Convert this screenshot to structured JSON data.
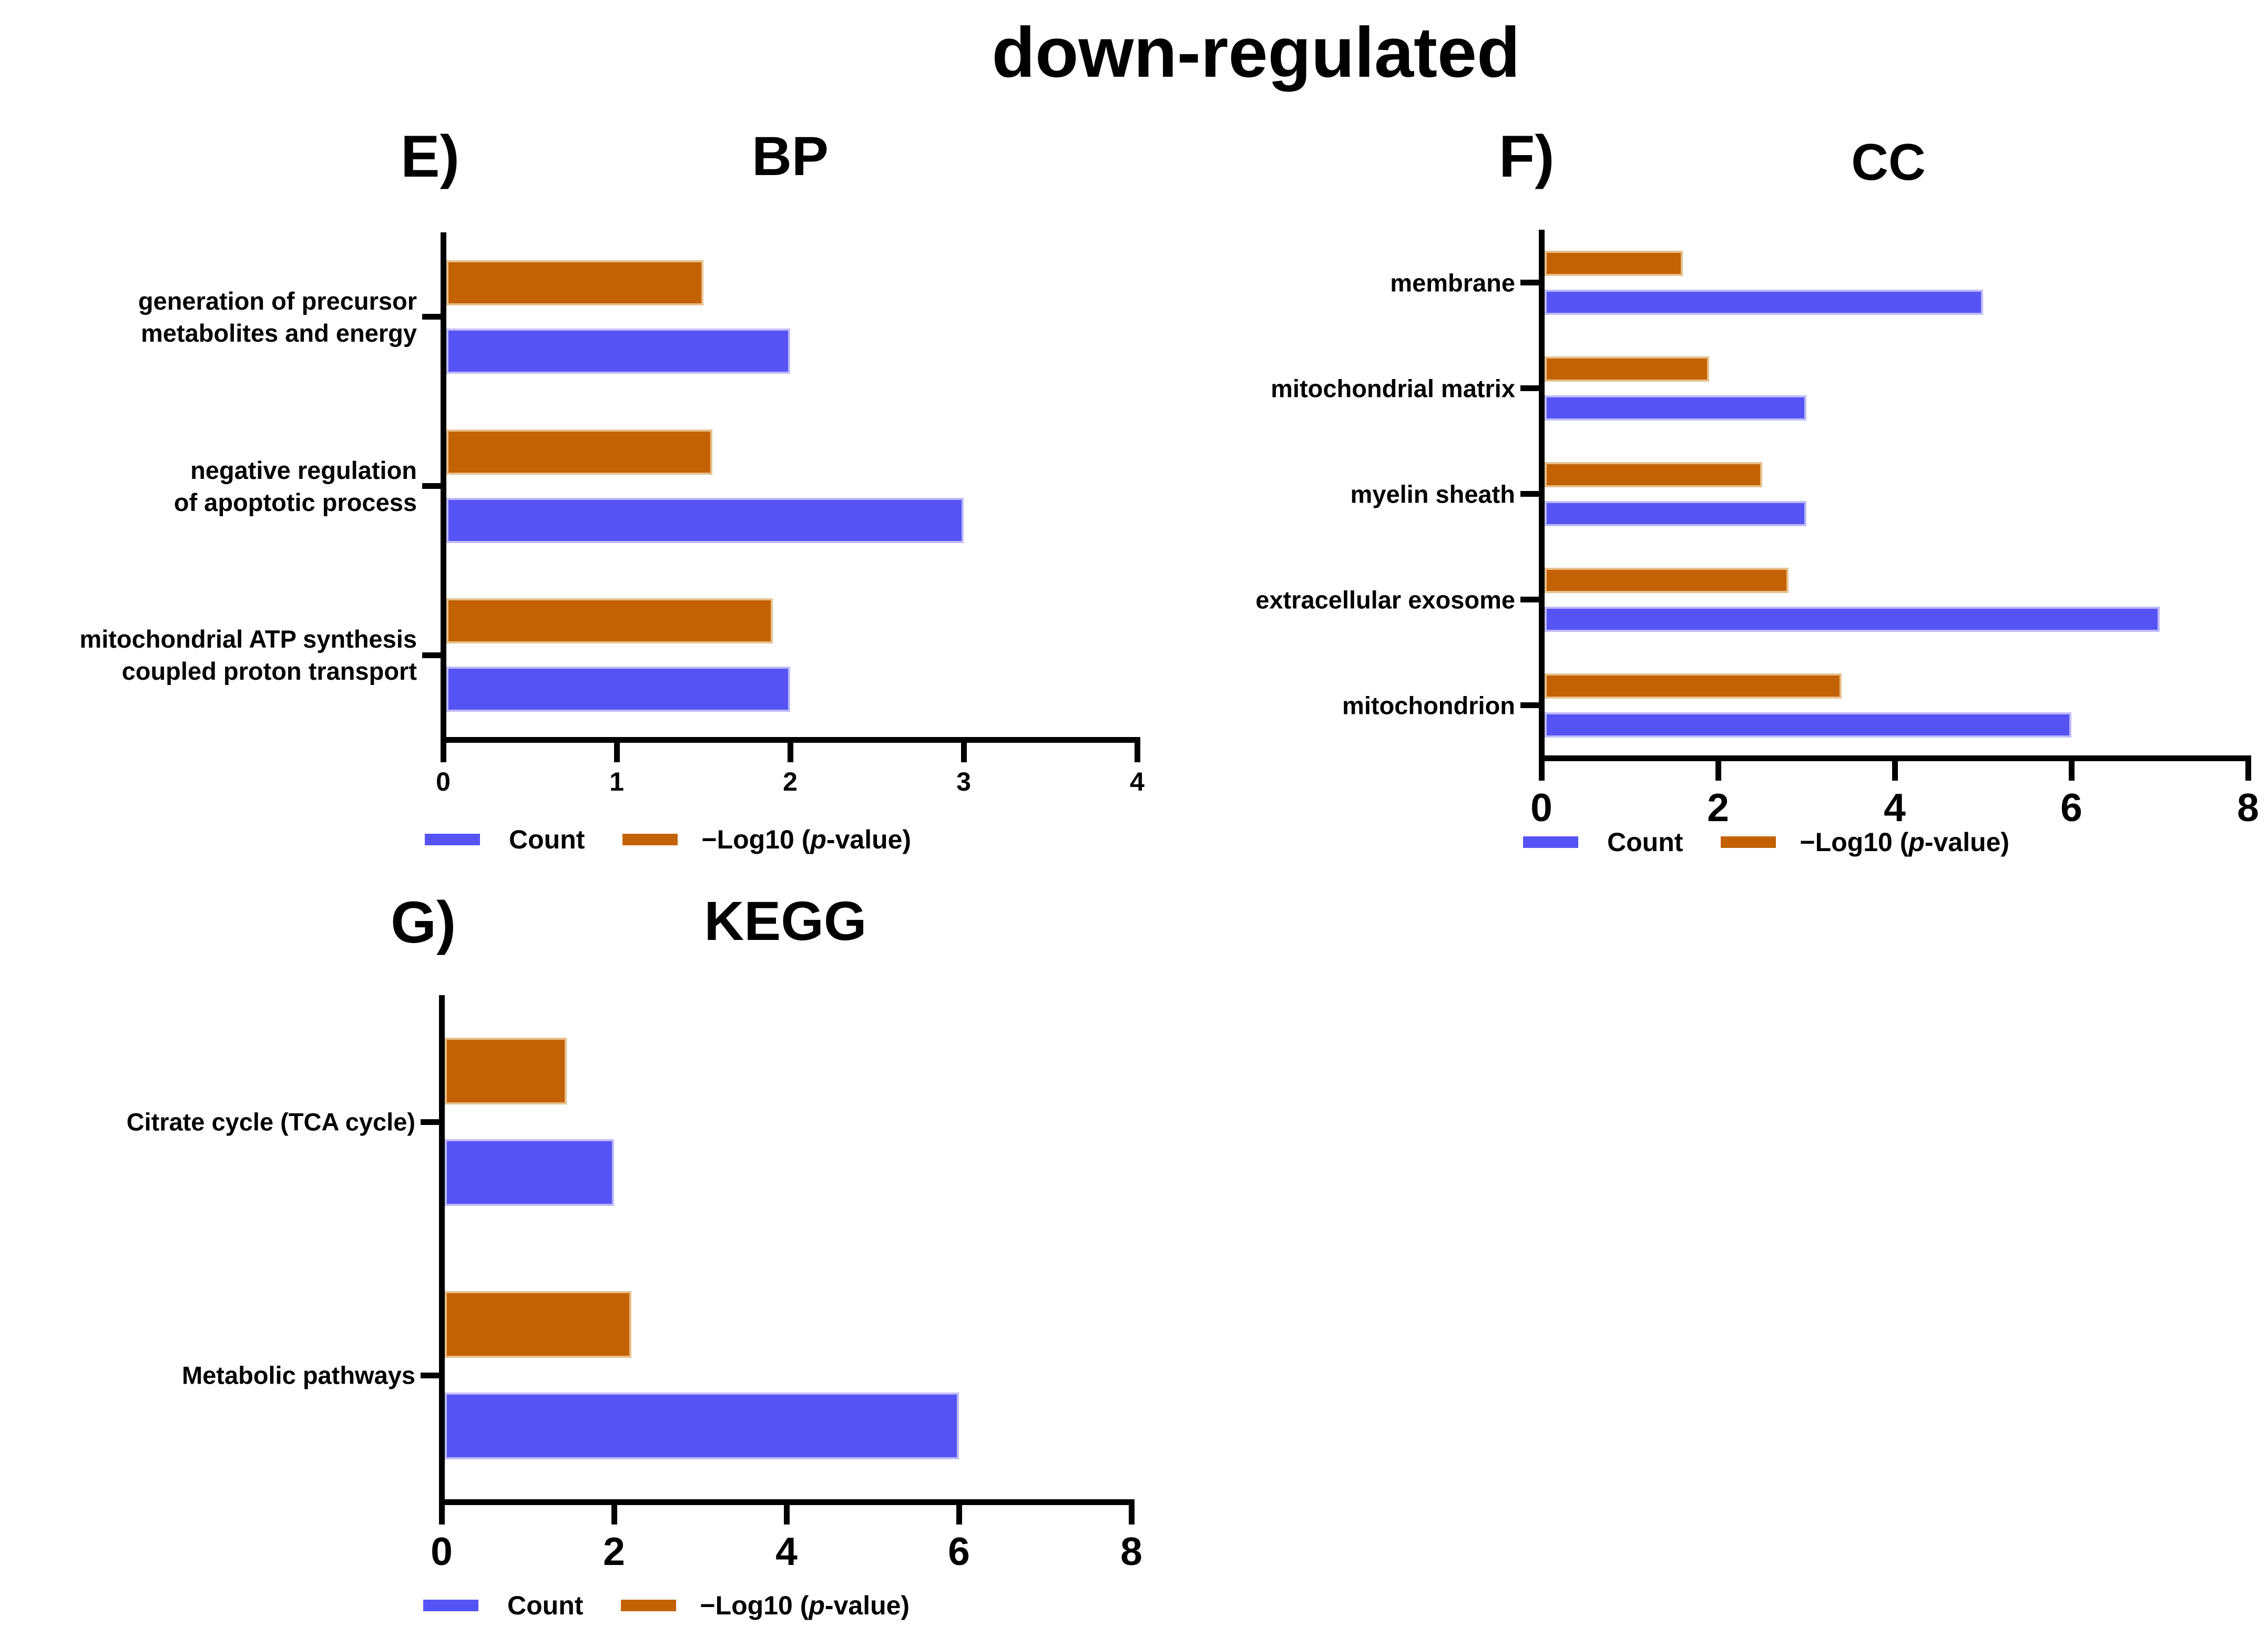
{
  "figure_title": "down-regulated",
  "legend": {
    "count_label": "Count",
    "pvalue_pre": "−Log10 (",
    "pvalue_italic": "p",
    "pvalue_post": "-value)"
  },
  "colors": {
    "count": "#5653F4",
    "pvalue": "#C36204",
    "count_edge": "rgba(201,199,251,0.9)",
    "pvalue_edge": "rgba(235,203,156,0.9)",
    "axis": "#000000"
  },
  "chart_data": [
    {
      "id": "bp",
      "panel_label": "E)",
      "title": "BP",
      "type": "bar",
      "orientation": "horizontal",
      "grid": false,
      "legend_position": "bottom",
      "categories": [
        "generation of precursor\nmetabolites and energy",
        "negative regulation\nof apoptotic process",
        "mitochondrial ATP synthesis\ncoupled proton transport"
      ],
      "series": [
        {
          "name": "Count",
          "values": [
            2,
            3,
            2
          ]
        },
        {
          "name": "−Log10 (p-value)",
          "values": [
            1.5,
            1.55,
            1.9
          ]
        }
      ],
      "xlim": [
        0,
        4
      ],
      "xticks": [
        0,
        1,
        2,
        3,
        4
      ]
    },
    {
      "id": "cc",
      "panel_label": "F)",
      "title": "CC",
      "type": "bar",
      "orientation": "horizontal",
      "grid": false,
      "legend_position": "bottom",
      "categories": [
        "membrane",
        "mitochondrial matrix",
        "myelin sheath",
        "extracellular exosome",
        "mitochondrion"
      ],
      "series": [
        {
          "name": "Count",
          "values": [
            5,
            3,
            3,
            7,
            6
          ]
        },
        {
          "name": "−Log10 (p-value)",
          "values": [
            1.6,
            1.9,
            2.5,
            2.8,
            3.4
          ]
        }
      ],
      "xlim": [
        0,
        8
      ],
      "xticks": [
        0,
        2,
        4,
        6,
        8
      ]
    },
    {
      "id": "kegg",
      "panel_label": "G)",
      "title": "KEGG",
      "type": "bar",
      "orientation": "horizontal",
      "grid": false,
      "legend_position": "bottom",
      "categories": [
        "Citrate cycle (TCA cycle)",
        "Metabolic pathways"
      ],
      "series": [
        {
          "name": "Count",
          "values": [
            2,
            6
          ]
        },
        {
          "name": "−Log10 (p-value)",
          "values": [
            1.45,
            2.2
          ]
        }
      ],
      "xlim": [
        0,
        8
      ],
      "xticks": [
        0,
        2,
        4,
        6,
        8
      ]
    }
  ]
}
